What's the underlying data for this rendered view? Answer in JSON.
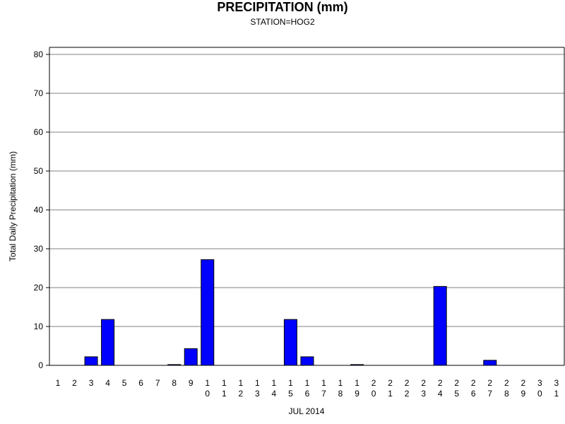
{
  "chart_data": {
    "type": "bar",
    "title": "PRECIPITATION (mm)",
    "subtitle": "STATION=HOG2",
    "ylabel": "Total Daily Precipitation (mm)",
    "xlabel": "JUL 2014",
    "ylim": [
      0,
      80
    ],
    "yticks": [
      "0",
      "10",
      "20",
      "30",
      "40",
      "50",
      "60",
      "70",
      "80"
    ],
    "grid": true,
    "bar_color": "#0000ff",
    "categories": [
      "1",
      "2",
      "3",
      "4",
      "5",
      "6",
      "7",
      "8",
      "9",
      "10",
      "11",
      "12",
      "13",
      "14",
      "15",
      "16",
      "17",
      "18",
      "19",
      "20",
      "21",
      "22",
      "23",
      "24",
      "25",
      "26",
      "27",
      "28",
      "29",
      "30",
      "31"
    ],
    "values": [
      0,
      0,
      2.2,
      11.8,
      0,
      0,
      0,
      0.2,
      4.3,
      27.2,
      0,
      0,
      0,
      0,
      11.8,
      2.2,
      0,
      0,
      0.2,
      0,
      0,
      0,
      0,
      20.3,
      0,
      0,
      1.3,
      0,
      0,
      0,
      0
    ]
  }
}
